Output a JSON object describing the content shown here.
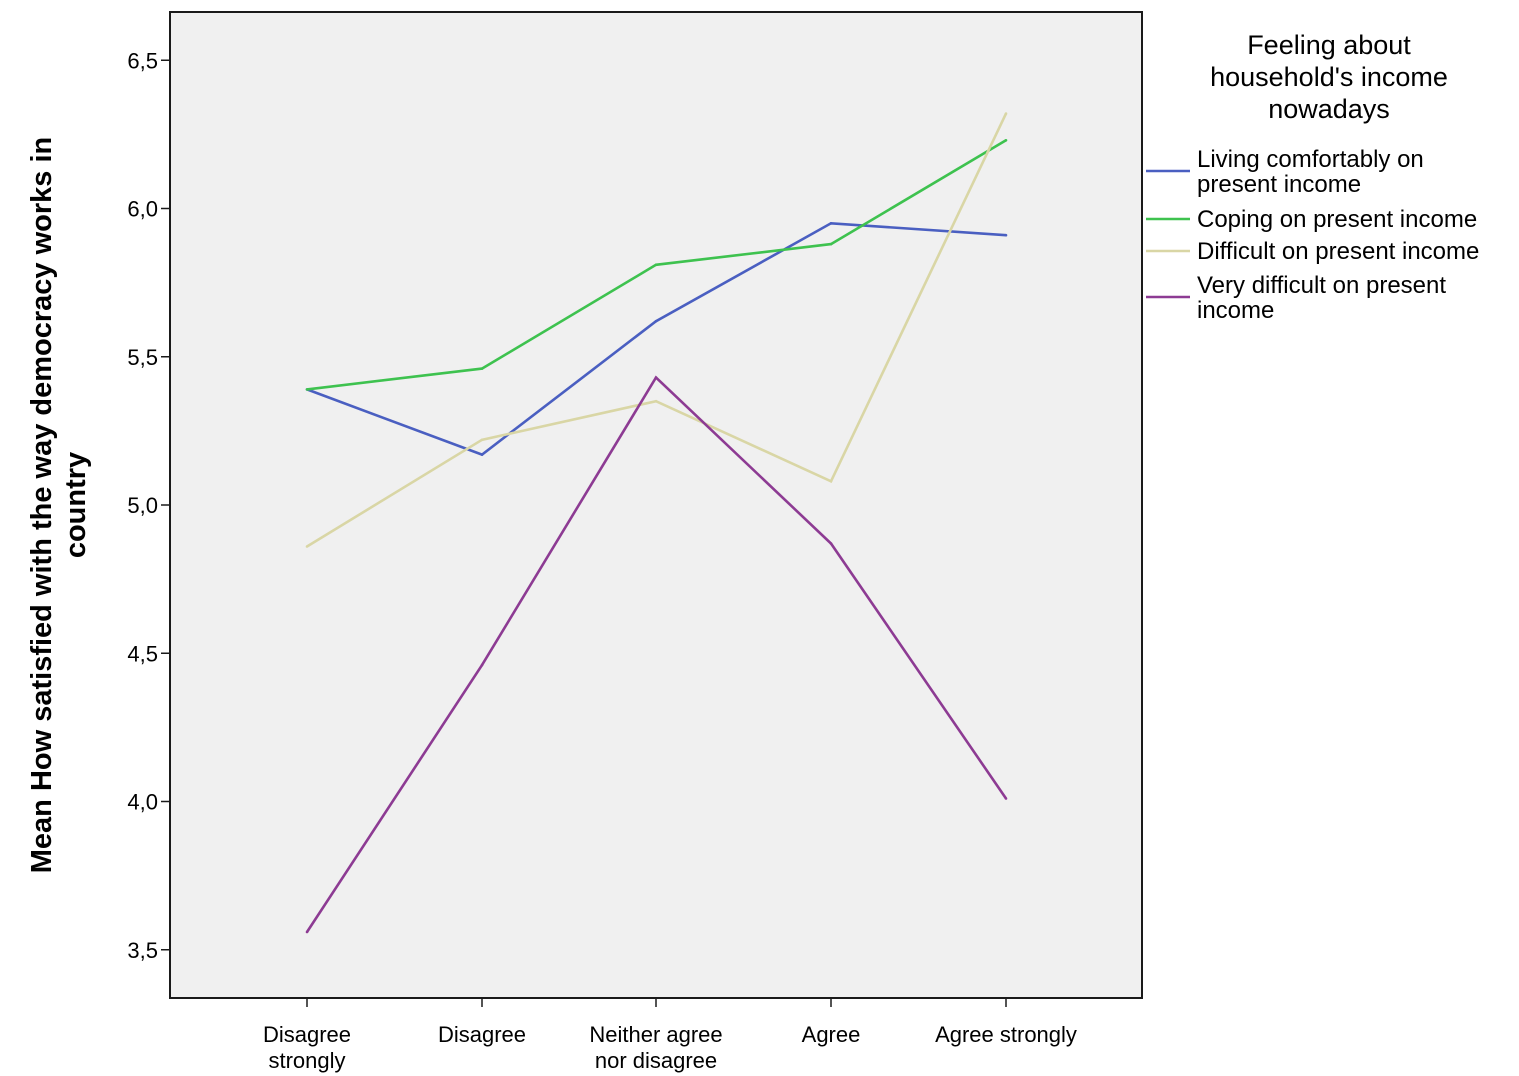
{
  "chart_data": {
    "type": "line",
    "title": "",
    "xlabel": "",
    "ylabel_lines": [
      "Mean How satisfied with the way democracy works in",
      "country"
    ],
    "ylim": [
      3.3,
      6.65
    ],
    "yticks": [
      "3,5",
      "4,0",
      "4,5",
      "5,0",
      "5,5",
      "6,0",
      "6,5"
    ],
    "ytick_values": [
      3.5,
      4.0,
      4.5,
      5.0,
      5.5,
      6.0,
      6.5
    ],
    "categories": [
      [
        "Disagree",
        "strongly"
      ],
      [
        "Disagree"
      ],
      [
        "Neither agree",
        "nor disagree"
      ],
      [
        "Agree"
      ],
      [
        "Agree strongly"
      ]
    ],
    "grid": false,
    "legend": {
      "position": "right",
      "title_lines": [
        "Feeling about",
        "household's income",
        "nowadays"
      ]
    },
    "series": [
      {
        "name": "Living comfortably on present income",
        "name_lines": [
          "Living comfortably on",
          "present income"
        ],
        "color": "#4a5fc1",
        "values": [
          5.39,
          5.17,
          5.62,
          5.95,
          5.91
        ]
      },
      {
        "name": "Coping on present income",
        "name_lines": [
          "Coping on present income"
        ],
        "color": "#3ec24f",
        "values": [
          5.39,
          5.46,
          5.81,
          5.88,
          6.23
        ]
      },
      {
        "name": "Difficult on present income",
        "name_lines": [
          "Difficult on present income"
        ],
        "color": "#d9d6a5",
        "values": [
          4.86,
          5.22,
          5.35,
          5.08,
          6.32
        ]
      },
      {
        "name": "Very difficult on present income",
        "name_lines": [
          "Very difficult on present",
          "income"
        ],
        "color": "#8d3b93",
        "values": [
          3.56,
          4.46,
          5.43,
          4.87,
          4.01
        ]
      }
    ]
  }
}
